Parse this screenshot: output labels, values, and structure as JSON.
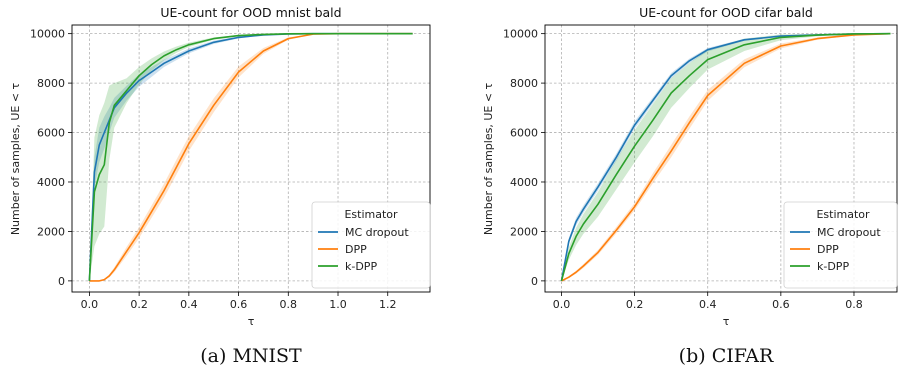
{
  "chart_data": [
    {
      "type": "line",
      "title": "UE-count for OOD mnist bald",
      "xlabel": "τ",
      "ylabel": "Number of samples, UE < τ",
      "caption": "(a) MNIST",
      "xlim": [
        -0.07,
        1.37
      ],
      "ylim": [
        -450,
        10350
      ],
      "xticks": [
        0.0,
        0.2,
        0.4,
        0.6,
        0.8,
        1.0,
        1.2
      ],
      "xtick_labels": [
        "0.0",
        "0.2",
        "0.4",
        "0.6",
        "0.8",
        "1.0",
        "1.2"
      ],
      "yticks": [
        0,
        2000,
        4000,
        6000,
        8000,
        10000
      ],
      "ytick_labels": [
        "0",
        "2000",
        "4000",
        "6000",
        "8000",
        "10000"
      ],
      "grid": true,
      "legend": {
        "title": "Estimator",
        "position": "lower-right"
      },
      "series": [
        {
          "name": "MC dropout",
          "color": "#1f77b4",
          "x": [
            0,
            0.02,
            0.04,
            0.06,
            0.08,
            0.1,
            0.15,
            0.2,
            0.25,
            0.3,
            0.35,
            0.4,
            0.5,
            0.6,
            0.7,
            0.8,
            0.9,
            1.0,
            1.1,
            1.2,
            1.3
          ],
          "y": [
            0,
            4400,
            5500,
            6000,
            6500,
            7000,
            7600,
            8100,
            8450,
            8800,
            9050,
            9300,
            9650,
            9850,
            9950,
            9990,
            10000,
            10000,
            10000,
            10000,
            10000
          ],
          "band": [
            0,
            600,
            700,
            650,
            500,
            400,
            300,
            250,
            200,
            150,
            120,
            100,
            70,
            40,
            20,
            0,
            0,
            0,
            0,
            0,
            0
          ]
        },
        {
          "name": "DPP",
          "color": "#ff7f0e",
          "x": [
            0,
            0.02,
            0.04,
            0.06,
            0.08,
            0.1,
            0.15,
            0.2,
            0.25,
            0.3,
            0.35,
            0.4,
            0.5,
            0.6,
            0.7,
            0.8,
            0.9,
            1.0,
            1.1,
            1.2,
            1.3
          ],
          "y": [
            0,
            0,
            0,
            50,
            200,
            450,
            1200,
            1950,
            2800,
            3650,
            4600,
            5550,
            7100,
            8450,
            9300,
            9800,
            9980,
            10000,
            10000,
            10000,
            10000
          ],
          "band": [
            0,
            0,
            0,
            20,
            60,
            100,
            180,
            220,
            250,
            280,
            300,
            300,
            280,
            220,
            120,
            50,
            10,
            0,
            0,
            0,
            0
          ]
        },
        {
          "name": "k-DPP",
          "color": "#2ca02c",
          "x": [
            0,
            0.02,
            0.04,
            0.06,
            0.08,
            0.1,
            0.15,
            0.2,
            0.25,
            0.3,
            0.35,
            0.4,
            0.5,
            0.6,
            0.7,
            0.8,
            0.9,
            1.0,
            1.1,
            1.2,
            1.3
          ],
          "y": [
            0,
            3600,
            4300,
            4700,
            6400,
            7100,
            7700,
            8300,
            8750,
            9100,
            9350,
            9550,
            9800,
            9920,
            9970,
            9995,
            10000,
            10000,
            10000,
            10000,
            10000
          ],
          "band": [
            0,
            2200,
            2400,
            2500,
            1500,
            900,
            500,
            350,
            250,
            180,
            130,
            90,
            50,
            25,
            10,
            0,
            0,
            0,
            0,
            0,
            0
          ]
        }
      ]
    },
    {
      "type": "line",
      "title": "UE-count for OOD cifar bald",
      "xlabel": "τ",
      "ylabel": "Number of samples, UE < τ",
      "caption": "(b) CIFAR",
      "xlim": [
        -0.045,
        0.945
      ],
      "ylim": [
        -450,
        10350
      ],
      "xticks": [
        0.0,
        0.2,
        0.4,
        0.6,
        0.8
      ],
      "xtick_labels": [
        "0.0",
        "0.2",
        "0.4",
        "0.6",
        "0.8"
      ],
      "yticks": [
        0,
        2000,
        4000,
        6000,
        8000,
        10000
      ],
      "ytick_labels": [
        "0",
        "2000",
        "4000",
        "6000",
        "8000",
        "10000"
      ],
      "grid": true,
      "legend": {
        "title": "Estimator",
        "position": "lower-right"
      },
      "series": [
        {
          "name": "MC dropout",
          "color": "#1f77b4",
          "x": [
            0,
            0.02,
            0.04,
            0.06,
            0.1,
            0.15,
            0.2,
            0.25,
            0.3,
            0.35,
            0.4,
            0.5,
            0.6,
            0.7,
            0.8,
            0.9
          ],
          "y": [
            0,
            1600,
            2400,
            2900,
            3800,
            5000,
            6300,
            7300,
            8300,
            8900,
            9350,
            9750,
            9900,
            9950,
            9990,
            10000
          ],
          "band": [
            0,
            120,
            150,
            150,
            150,
            150,
            150,
            130,
            110,
            90,
            70,
            40,
            20,
            10,
            0,
            0
          ]
        },
        {
          "name": "DPP",
          "color": "#ff7f0e",
          "x": [
            0,
            0.02,
            0.04,
            0.06,
            0.1,
            0.15,
            0.2,
            0.25,
            0.3,
            0.35,
            0.4,
            0.5,
            0.6,
            0.7,
            0.8,
            0.9
          ],
          "y": [
            0,
            150,
            350,
            600,
            1150,
            2050,
            3000,
            4150,
            5250,
            6400,
            7500,
            8800,
            9500,
            9800,
            9950,
            10000
          ],
          "band": [
            0,
            30,
            60,
            80,
            100,
            130,
            150,
            200,
            250,
            250,
            220,
            160,
            100,
            50,
            20,
            0
          ]
        },
        {
          "name": "k-DPP",
          "color": "#2ca02c",
          "x": [
            0,
            0.02,
            0.04,
            0.06,
            0.1,
            0.15,
            0.2,
            0.25,
            0.3,
            0.35,
            0.4,
            0.5,
            0.6,
            0.7,
            0.8,
            0.9
          ],
          "y": [
            0,
            1100,
            1800,
            2300,
            3100,
            4300,
            5450,
            6500,
            7600,
            8300,
            8950,
            9550,
            9850,
            9940,
            9990,
            10000
          ],
          "band": [
            0,
            250,
            350,
            400,
            500,
            600,
            650,
            650,
            600,
            500,
            400,
            250,
            120,
            50,
            10,
            0
          ]
        }
      ]
    }
  ]
}
